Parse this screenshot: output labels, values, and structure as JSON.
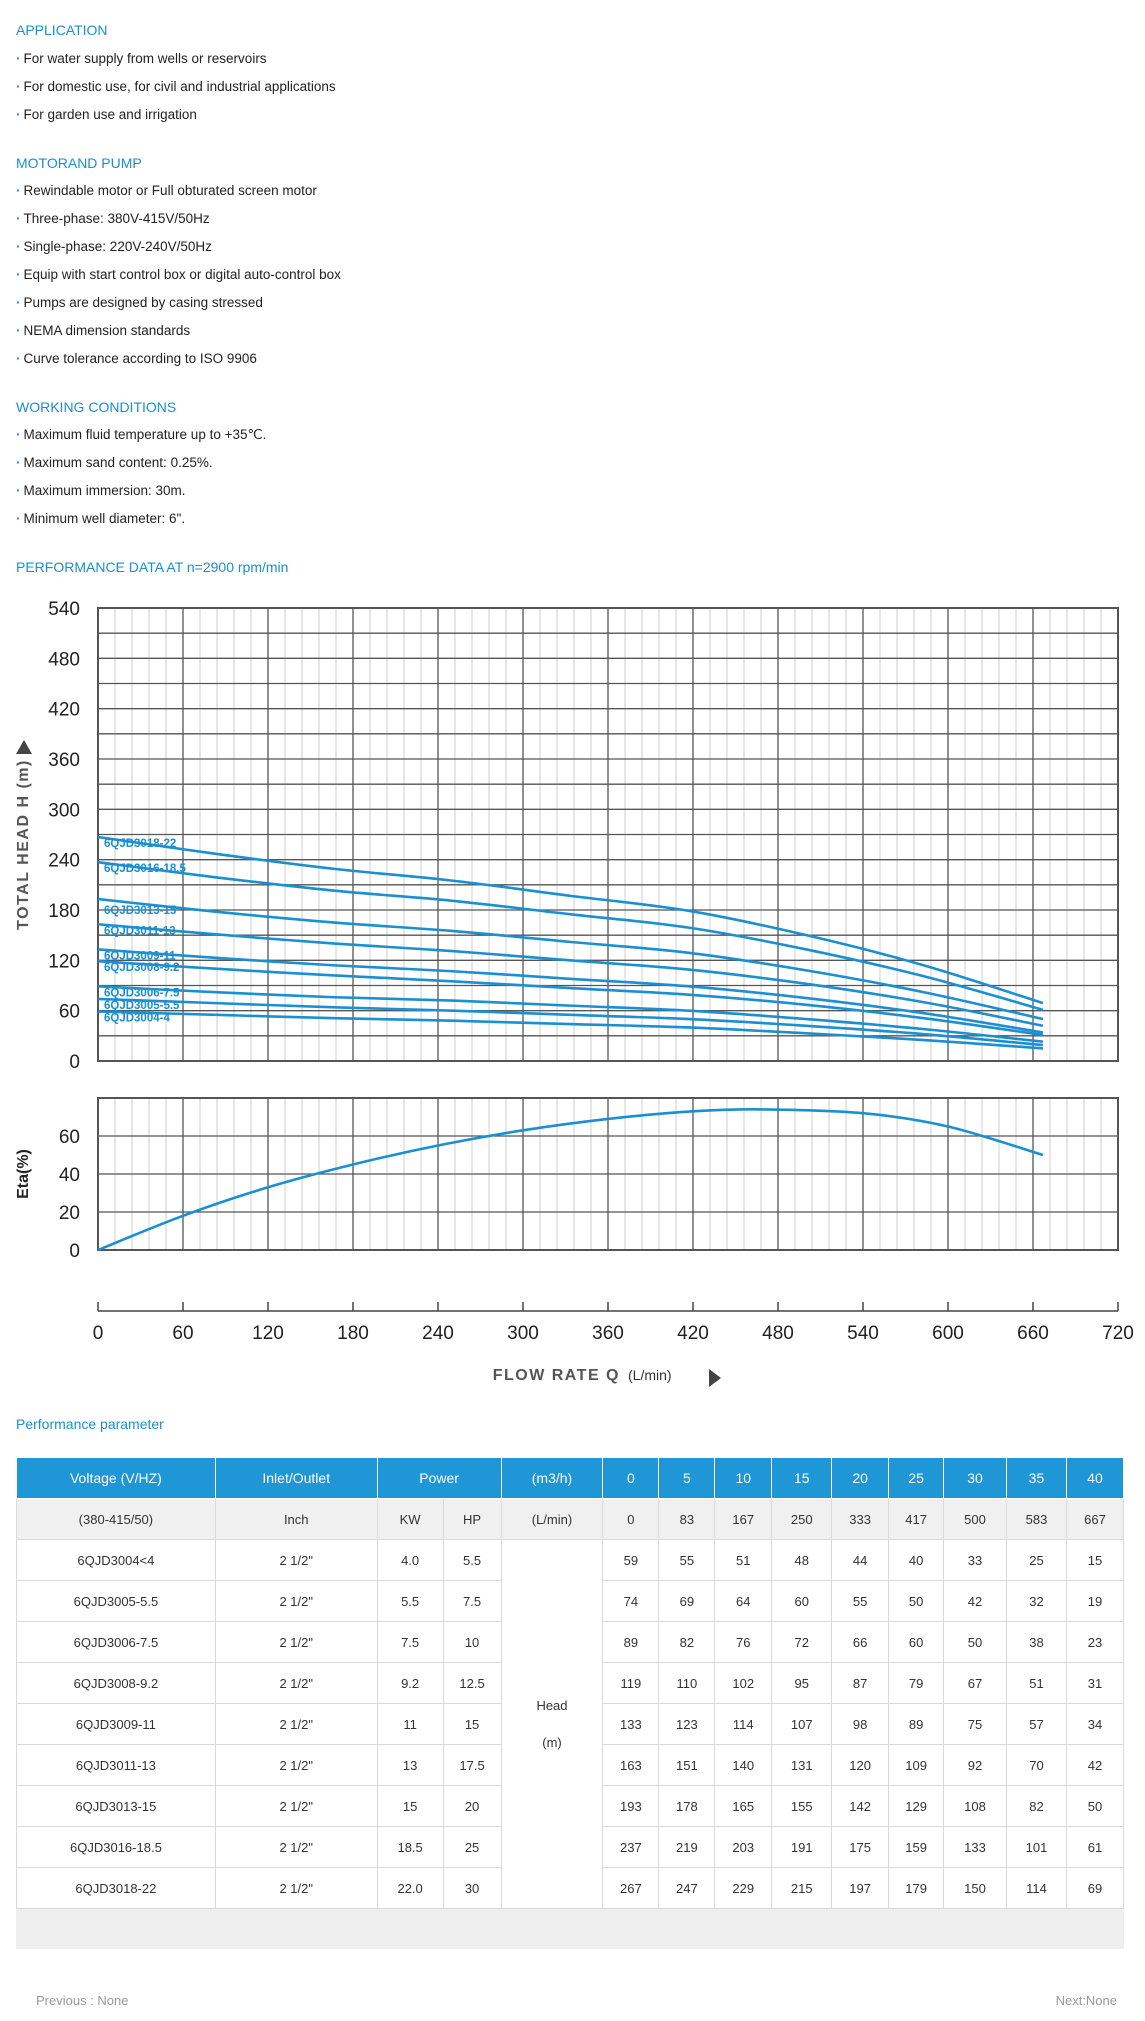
{
  "application": {
    "title": "APPLICATION",
    "items": [
      "For water supply from wells or reservoirs",
      "For domestic use, for civil and industrial applications",
      "For garden use and irrigation"
    ]
  },
  "motor_pump": {
    "title": "MOTORAND PUMP",
    "items": [
      "Rewindable motor or Full obturated screen motor",
      "Three-phase: 380V-415V/50Hz",
      "Single-phase: 220V-240V/50Hz",
      "Equip with start control box or digital auto-control box",
      "Pumps are designed by casing stressed",
      "NEMA dimension standards",
      "Curve tolerance according to ISO 9906"
    ]
  },
  "working_conditions": {
    "title": "WORKING CONDITIONS",
    "items": [
      "Maximum fluid temperature up to +35℃.",
      "Maximum sand content: 0.25%.",
      "Maximum immersion: 30m.",
      "Minimum well diameter: 6\"."
    ]
  },
  "performance_title": "PERFORMANCE DATA AT n=2900 rpm/min",
  "chart_data": {
    "type": "line",
    "head_chart": {
      "ylabel": "TOTAL HEAD H (m)",
      "ylim": [
        0,
        540
      ],
      "yticks": [
        "0",
        "60",
        "120",
        "180",
        "240",
        "300",
        "360",
        "420",
        "480",
        "540"
      ],
      "series": [
        {
          "name": "6QJD3018-22",
          "x": [
            0,
            83,
            167,
            250,
            333,
            417,
            500,
            583,
            667
          ],
          "values": [
            267,
            247,
            229,
            215,
            197,
            179,
            150,
            114,
            69
          ]
        },
        {
          "name": "6QJD3016-18.5",
          "x": [
            0,
            83,
            167,
            250,
            333,
            417,
            500,
            583,
            667
          ],
          "values": [
            237,
            219,
            203,
            191,
            175,
            159,
            133,
            101,
            61
          ]
        },
        {
          "name": "6QJD3013-15",
          "x": [
            0,
            83,
            167,
            250,
            333,
            417,
            500,
            583,
            667
          ],
          "values": [
            193,
            178,
            165,
            155,
            142,
            129,
            108,
            82,
            50
          ]
        },
        {
          "name": "6QJD3011-13",
          "x": [
            0,
            83,
            167,
            250,
            333,
            417,
            500,
            583,
            667
          ],
          "values": [
            163,
            151,
            140,
            131,
            120,
            109,
            92,
            70,
            42
          ]
        },
        {
          "name": "6QJD3009-11",
          "x": [
            0,
            83,
            167,
            250,
            333,
            417,
            500,
            583,
            667
          ],
          "values": [
            133,
            123,
            114,
            107,
            98,
            89,
            75,
            57,
            34
          ]
        },
        {
          "name": "6QJD3008-9.2",
          "x": [
            0,
            83,
            167,
            250,
            333,
            417,
            500,
            583,
            667
          ],
          "values": [
            119,
            110,
            102,
            95,
            87,
            79,
            67,
            51,
            31
          ]
        },
        {
          "name": "6QJD3006-7.5",
          "x": [
            0,
            83,
            167,
            250,
            333,
            417,
            500,
            583,
            667
          ],
          "values": [
            89,
            82,
            76,
            72,
            66,
            60,
            50,
            38,
            23
          ]
        },
        {
          "name": "6QJD3005-5.5",
          "x": [
            0,
            83,
            167,
            250,
            333,
            417,
            500,
            583,
            667
          ],
          "values": [
            74,
            69,
            64,
            60,
            55,
            50,
            42,
            32,
            19
          ]
        },
        {
          "name": "6QJD3004-4",
          "x": [
            0,
            83,
            167,
            250,
            333,
            417,
            500,
            583,
            667
          ],
          "values": [
            59,
            55,
            51,
            48,
            44,
            40,
            33,
            25,
            15
          ]
        }
      ]
    },
    "eta_chart": {
      "ylabel": "Eta(%)",
      "ylim": [
        0,
        80
      ],
      "yticks": [
        "0",
        "20",
        "40",
        "60"
      ],
      "series": [
        {
          "name": "Eta",
          "x": [
            0,
            60,
            120,
            180,
            240,
            300,
            360,
            420,
            470,
            540,
            600,
            667
          ],
          "values": [
            0,
            18,
            33,
            45,
            55,
            63,
            69,
            73,
            74,
            72,
            65,
            50
          ]
        }
      ]
    },
    "xlabel": "FLOW RATE Q",
    "xunit": "(L/min)",
    "xlim": [
      0,
      720
    ],
    "xticks": [
      "0",
      "60",
      "120",
      "180",
      "240",
      "300",
      "360",
      "420",
      "480",
      "540",
      "600",
      "660",
      "720"
    ]
  },
  "param_title": "Performance parameter",
  "table": {
    "h_voltage": "Voltage (V/HZ)",
    "h_inlet": "Inlet/Outlet",
    "h_power": "Power",
    "h_flow_unit": "(m3/h)",
    "flow_m3h": [
      "0",
      "5",
      "10",
      "15",
      "20",
      "25",
      "30",
      "35",
      "40"
    ],
    "u_voltage": "(380-415/50)",
    "u_inlet": "Inch",
    "u_kw": "KW",
    "u_hp": "HP",
    "u_flow_unit": "(L/min)",
    "flow_lmin": [
      "0",
      "83",
      "167",
      "250",
      "333",
      "417",
      "500",
      "583",
      "667"
    ],
    "head_label": "Head",
    "head_unit": "(m)",
    "rows": [
      {
        "model": "6QJD3004<4",
        "inlet": "2 1/2\"",
        "kw": "4.0",
        "hp": "5.5",
        "heads": [
          "59",
          "55",
          "51",
          "48",
          "44",
          "40",
          "33",
          "25",
          "15"
        ]
      },
      {
        "model": "6QJD3005-5.5",
        "inlet": "2 1/2\"",
        "kw": "5.5",
        "hp": "7.5",
        "heads": [
          "74",
          "69",
          "64",
          "60",
          "55",
          "50",
          "42",
          "32",
          "19"
        ]
      },
      {
        "model": "6QJD3006-7.5",
        "inlet": "2 1/2\"",
        "kw": "7.5",
        "hp": "10",
        "heads": [
          "89",
          "82",
          "76",
          "72",
          "66",
          "60",
          "50",
          "38",
          "23"
        ]
      },
      {
        "model": "6QJD3008-9.2",
        "inlet": "2 1/2\"",
        "kw": "9.2",
        "hp": "12.5",
        "heads": [
          "119",
          "110",
          "102",
          "95",
          "87",
          "79",
          "67",
          "51",
          "31"
        ]
      },
      {
        "model": "6QJD3009-11",
        "inlet": "2 1/2\"",
        "kw": "11",
        "hp": "15",
        "heads": [
          "133",
          "123",
          "114",
          "107",
          "98",
          "89",
          "75",
          "57",
          "34"
        ]
      },
      {
        "model": "6QJD3011-13",
        "inlet": "2 1/2\"",
        "kw": "13",
        "hp": "17.5",
        "heads": [
          "163",
          "151",
          "140",
          "131",
          "120",
          "109",
          "92",
          "70",
          "42"
        ]
      },
      {
        "model": "6QJD3013-15",
        "inlet": "2 1/2\"",
        "kw": "15",
        "hp": "20",
        "heads": [
          "193",
          "178",
          "165",
          "155",
          "142",
          "129",
          "108",
          "82",
          "50"
        ]
      },
      {
        "model": "6QJD3016-18.5",
        "inlet": "2 1/2\"",
        "kw": "18.5",
        "hp": "25",
        "heads": [
          "237",
          "219",
          "203",
          "191",
          "175",
          "159",
          "133",
          "101",
          "61"
        ]
      },
      {
        "model": "6QJD3018-22",
        "inlet": "2 1/2\"",
        "kw": "22.0",
        "hp": "30",
        "heads": [
          "267",
          "247",
          "229",
          "215",
          "197",
          "179",
          "150",
          "114",
          "69"
        ]
      }
    ]
  },
  "pager": {
    "previous": "Previous : None",
    "next": "Next:None"
  }
}
